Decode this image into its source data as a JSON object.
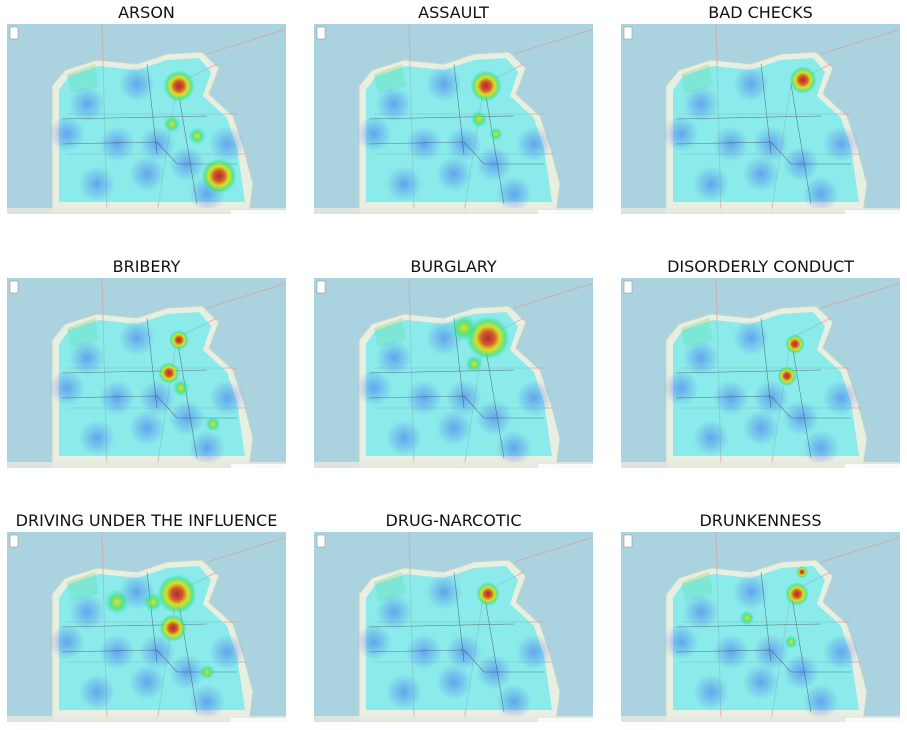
{
  "panels": [
    {
      "title": "ARSON"
    },
    {
      "title": "ASSAULT"
    },
    {
      "title": "BAD CHECKS"
    },
    {
      "title": "BRIBERY"
    },
    {
      "title": "BURGLARY"
    },
    {
      "title": "DISORDERLY CONDUCT"
    },
    {
      "title": "DRIVING UNDER THE INFLUENCE"
    },
    {
      "title": "DRUG-NARCOTIC"
    },
    {
      "title": "DRUNKENNESS"
    }
  ]
}
